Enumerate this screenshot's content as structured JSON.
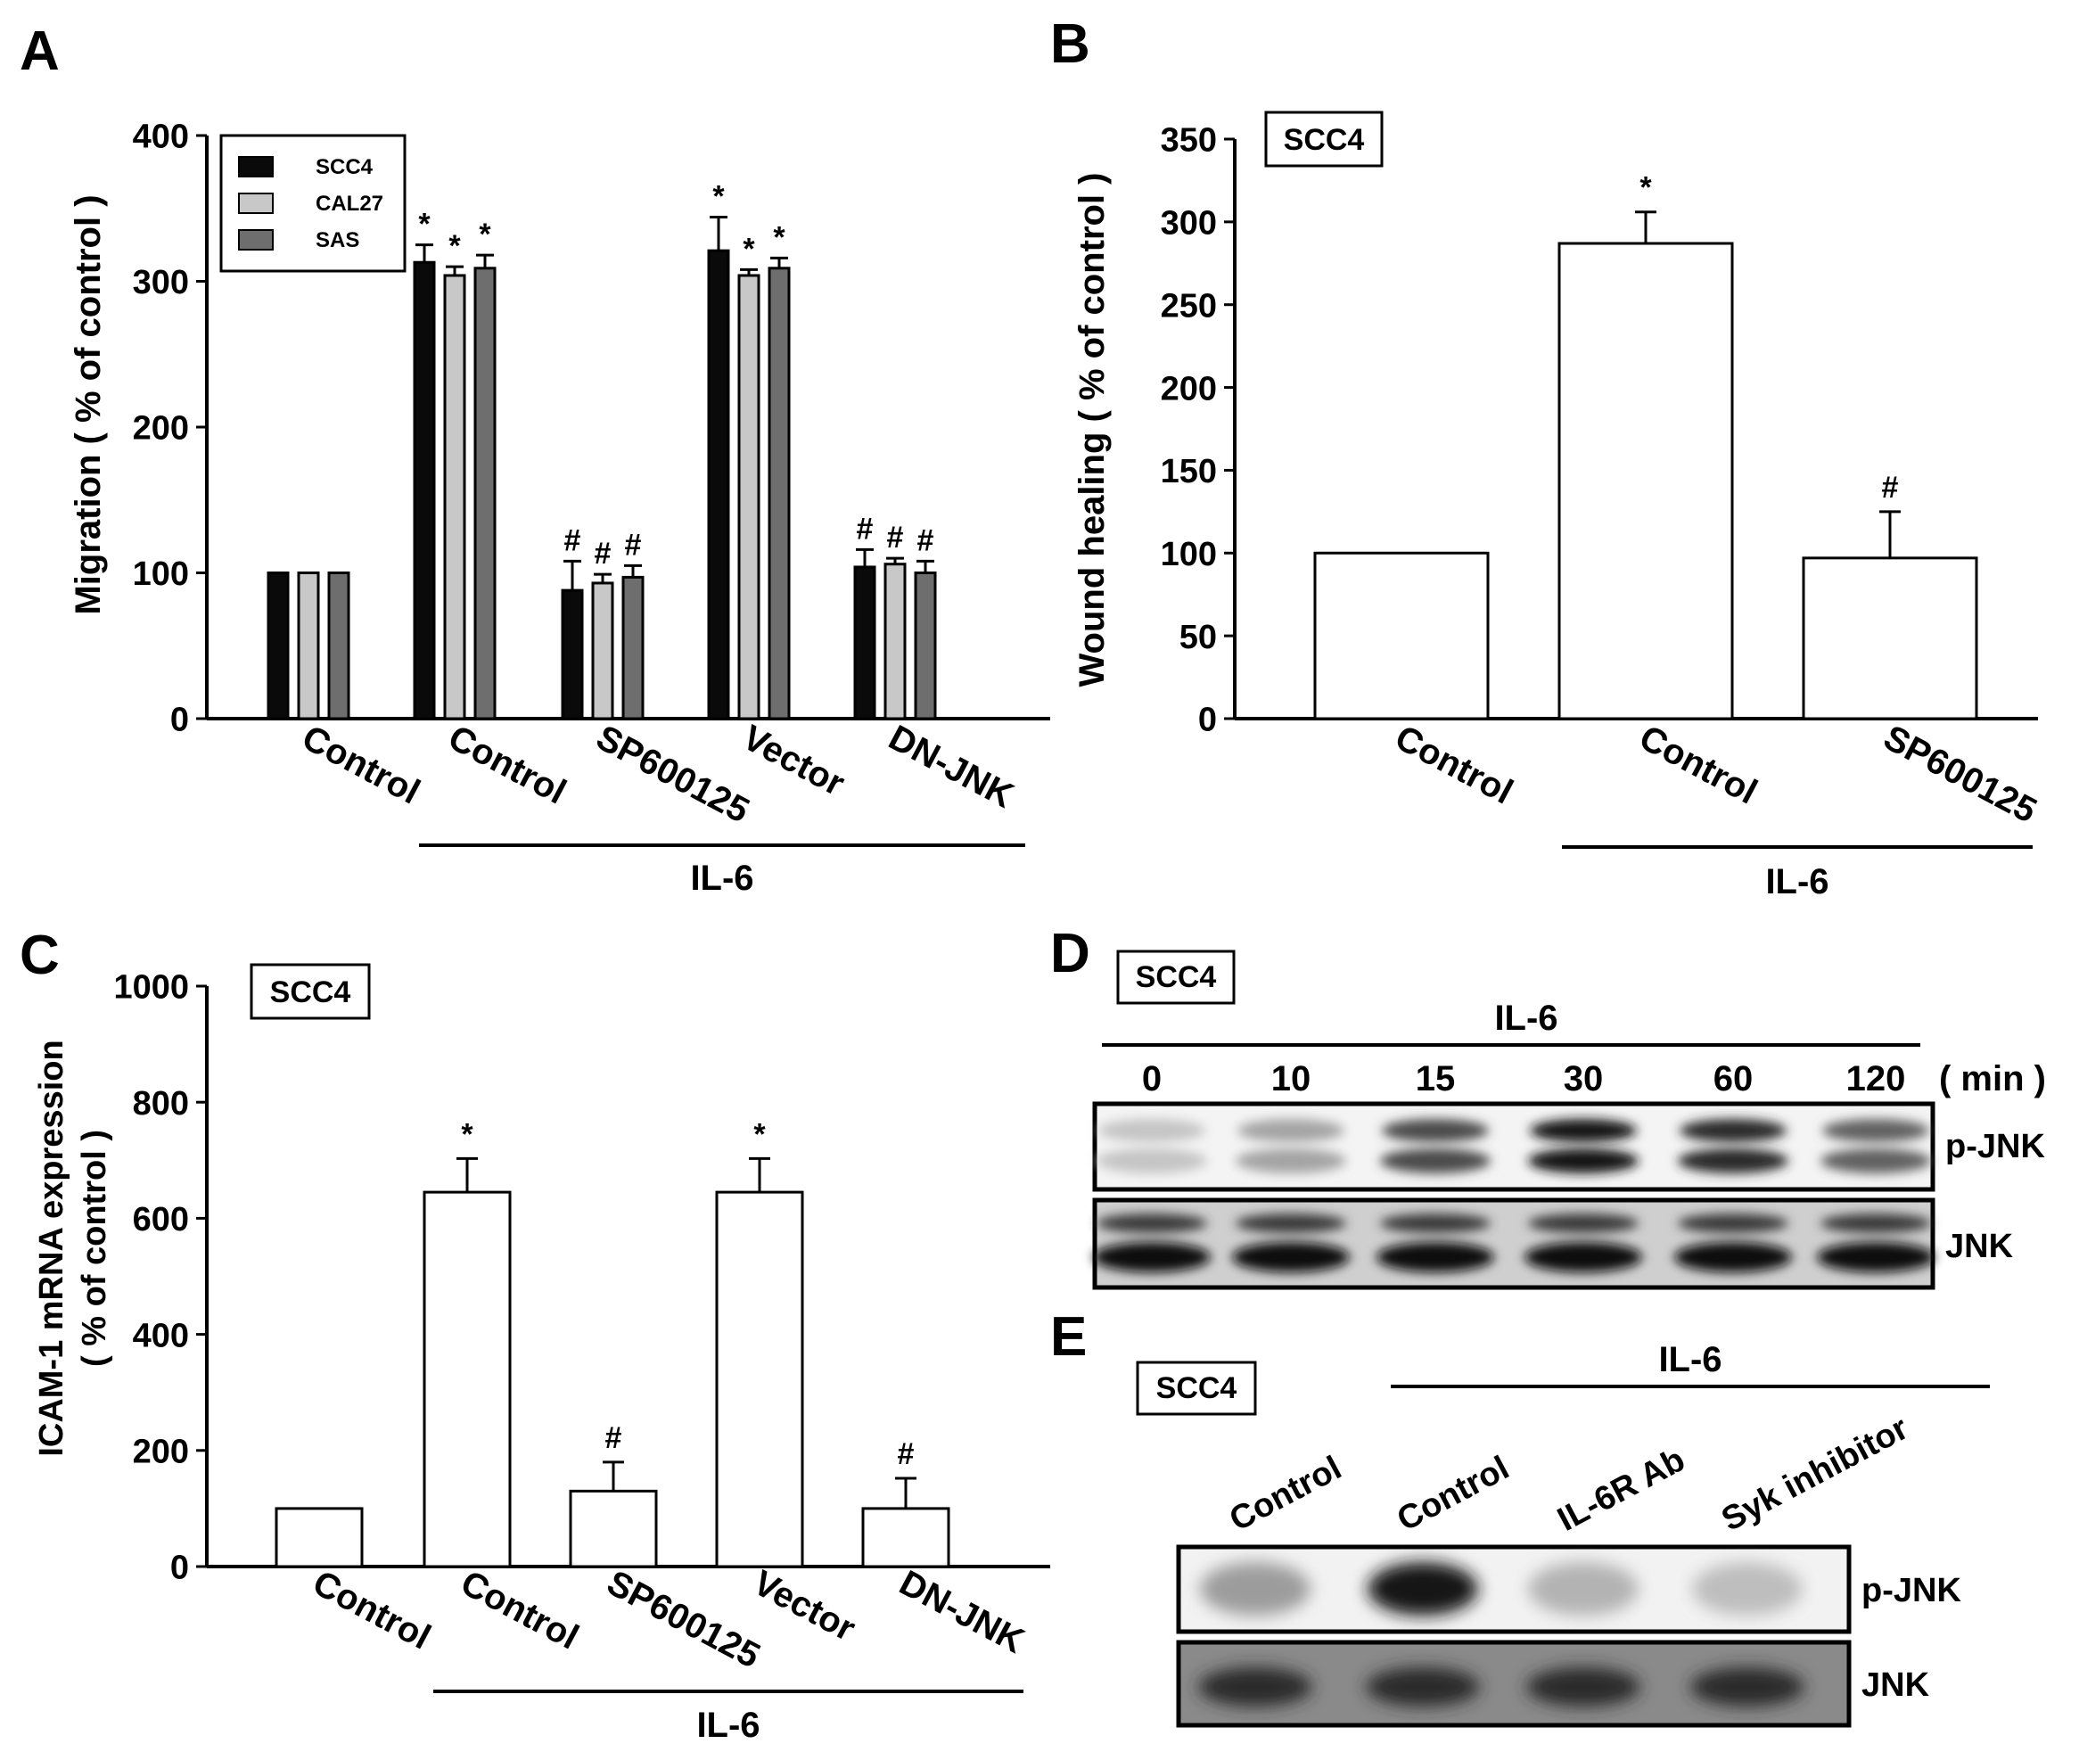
{
  "colors": {
    "scc4": "#0a0a0a",
    "cal27": "#c8c8c8",
    "sas": "#6e6e6e",
    "plain": "#ffffff"
  },
  "panels": {
    "A": {
      "letter": "A",
      "group_label": "IL-6",
      "chart_data": {
        "type": "bar",
        "ylabel": "Migration ( % of control )",
        "ylim": [
          0,
          400
        ],
        "yticks": [
          0,
          100,
          200,
          300,
          400
        ],
        "categories": [
          "Control",
          "Control",
          "SP600125",
          "Vector",
          "DN-JNK"
        ],
        "legend_position": "top-left",
        "series": [
          {
            "name": "SCC4",
            "values": [
              100,
              313,
              88,
              321,
              104
            ],
            "errors": [
              0,
              12,
              20,
              23,
              12
            ],
            "marks": [
              "",
              "*",
              "#",
              "*",
              "#"
            ]
          },
          {
            "name": "CAL27",
            "values": [
              100,
              304,
              93,
              304,
              106
            ],
            "errors": [
              0,
              6,
              6,
              4,
              4
            ],
            "marks": [
              "",
              "*",
              "#",
              "*",
              "#"
            ]
          },
          {
            "name": "SAS",
            "values": [
              100,
              309,
              97,
              309,
              100
            ],
            "errors": [
              0,
              9,
              8,
              7,
              8
            ],
            "marks": [
              "",
              "*",
              "#",
              "*",
              "#"
            ]
          }
        ]
      }
    },
    "B": {
      "letter": "B",
      "cell_label": "SCC4",
      "group_label": "IL-6",
      "chart_data": {
        "type": "bar",
        "ylabel": "Wound healing ( % of control )",
        "ylim": [
          0,
          350
        ],
        "yticks": [
          0,
          50,
          100,
          150,
          200,
          250,
          300,
          350
        ],
        "categories": [
          "Control",
          "Control",
          "SP600125"
        ],
        "values": [
          100,
          287,
          97
        ],
        "errors": [
          0,
          19,
          28
        ],
        "marks": [
          "",
          "*",
          "#"
        ]
      }
    },
    "C": {
      "letter": "C",
      "cell_label": "SCC4",
      "group_label": "IL-6",
      "chart_data": {
        "type": "bar",
        "ylabel_line1": "ICAM-1 mRNA expression",
        "ylabel_line2": "( % of control )",
        "ylim": [
          0,
          1000
        ],
        "yticks": [
          0,
          200,
          400,
          600,
          800,
          1000
        ],
        "categories": [
          "Control",
          "Control",
          "SP600125",
          "Vector",
          "DN-JNK"
        ],
        "values": [
          100,
          645,
          130,
          645,
          100
        ],
        "errors": [
          0,
          58,
          50,
          58,
          52
        ],
        "marks": [
          "",
          "*",
          "#",
          "*",
          "#"
        ]
      }
    },
    "D": {
      "letter": "D",
      "cell_label": "SCC4",
      "treatment_label": "IL-6",
      "timepoints": [
        "0",
        "10",
        "15",
        "30",
        "60",
        "120"
      ],
      "time_unit": "( min )",
      "blot_labels": [
        "p-JNK",
        "JNK"
      ],
      "pjnk_intensity": [
        0.15,
        0.3,
        0.7,
        0.95,
        0.85,
        0.6
      ]
    },
    "E": {
      "letter": "E",
      "cell_label": "SCC4",
      "treatment_label": "IL-6",
      "lanes": [
        "Control",
        "Control",
        "IL-6R Ab",
        "Syk inhibitor"
      ],
      "blot_labels": [
        "p-JNK",
        "JNK"
      ],
      "pjnk_intensity": [
        0.35,
        0.95,
        0.25,
        0.2
      ]
    }
  }
}
